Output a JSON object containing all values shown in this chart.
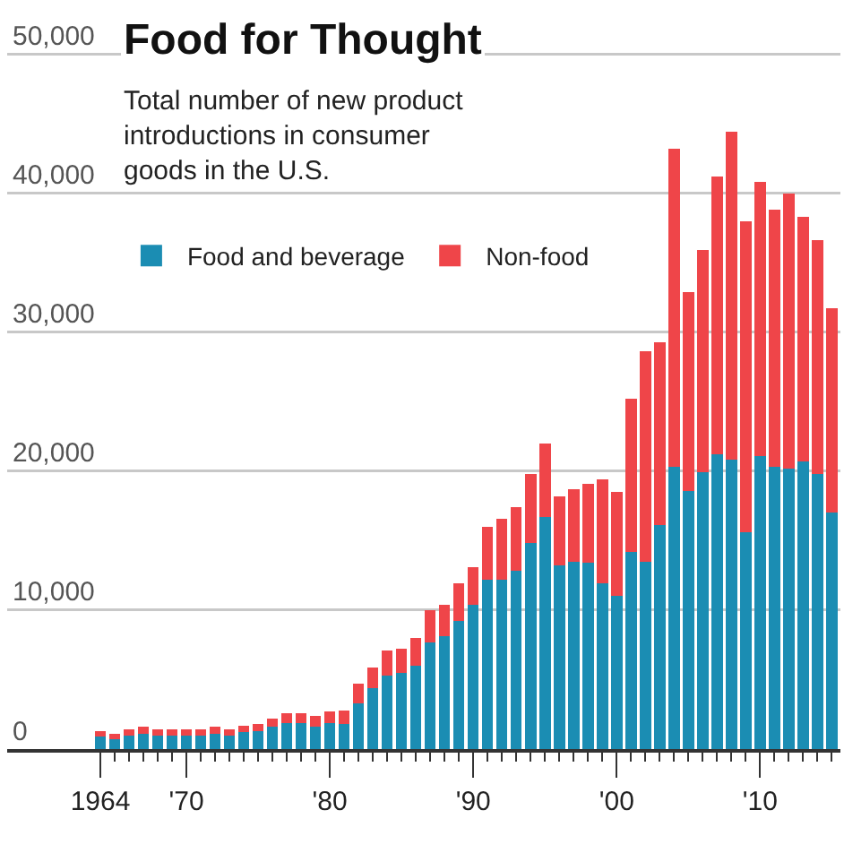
{
  "chart_data": {
    "type": "bar",
    "title": "Food for Thought",
    "subtitle": "Total number of new product introductions in consumer goods in the U.S.",
    "x": [
      1964,
      1965,
      1966,
      1967,
      1968,
      1969,
      1970,
      1971,
      1972,
      1973,
      1974,
      1975,
      1976,
      1977,
      1978,
      1979,
      1980,
      1981,
      1982,
      1983,
      1984,
      1985,
      1986,
      1987,
      1988,
      1989,
      1990,
      1991,
      1992,
      1993,
      1994,
      1995,
      1996,
      1997,
      1998,
      1999,
      2000,
      2001,
      2002,
      2003,
      2004,
      2005,
      2006,
      2007,
      2008,
      2009,
      2010,
      2011,
      2012,
      2013,
      2014,
      2015
    ],
    "stacked": true,
    "series": [
      {
        "name": "Food and beverage",
        "color": "#1b8db3",
        "values": [
          900,
          700,
          1000,
          1100,
          1000,
          1000,
          1000,
          1000,
          1100,
          1000,
          1200,
          1300,
          1600,
          1900,
          1900,
          1600,
          1900,
          1800,
          3300,
          4400,
          5300,
          5500,
          6000,
          7700,
          8100,
          9200,
          10400,
          12200,
          12200,
          12800,
          14800,
          16700,
          13200,
          13500,
          13400,
          11900,
          11000,
          14200,
          13500,
          16100,
          20300,
          18600,
          19900,
          21200,
          20800,
          15600,
          21100,
          20300,
          20200,
          20700,
          19800,
          17000
        ]
      },
      {
        "name": "Non-food",
        "color": "#ef4549",
        "values": [
          400,
          400,
          400,
          500,
          400,
          400,
          400,
          400,
          500,
          400,
          500,
          500,
          600,
          700,
          700,
          800,
          800,
          1000,
          1400,
          1500,
          1800,
          1700,
          2000,
          2300,
          2300,
          2700,
          2700,
          3800,
          4400,
          4600,
          5000,
          5300,
          5000,
          5200,
          5700,
          7500,
          7500,
          11000,
          15100,
          13200,
          22900,
          14300,
          16000,
          20000,
          23600,
          22400,
          19700,
          18500,
          19800,
          17600,
          16800,
          14700
        ]
      }
    ],
    "xlim": [
      1957.5,
      2015.6
    ],
    "xticks": [
      {
        "value": 1964,
        "label": "1964"
      },
      {
        "value": 1970,
        "label": "'70"
      },
      {
        "value": 1980,
        "label": "'80"
      },
      {
        "value": 1990,
        "label": "'90"
      },
      {
        "value": 2000,
        "label": "'00"
      },
      {
        "value": 2010,
        "label": "'10"
      }
    ],
    "ylim": [
      0,
      53000
    ],
    "yticks": [
      {
        "value": 0,
        "label": "0"
      },
      {
        "value": 10000,
        "label": "10,000"
      },
      {
        "value": 20000,
        "label": "20,000"
      },
      {
        "value": 30000,
        "label": "30,000"
      },
      {
        "value": 40000,
        "label": "40,000"
      },
      {
        "value": 50000,
        "label": "50,000"
      }
    ],
    "grid": "y",
    "legend": "top left"
  }
}
